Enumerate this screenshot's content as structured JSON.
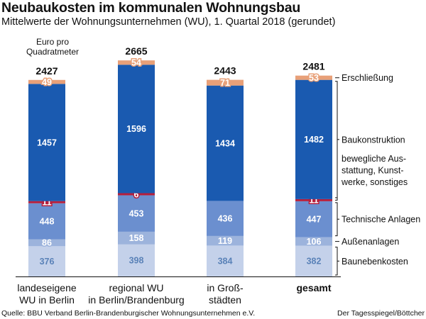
{
  "header": {
    "title": "Neubaukosten im kommunalen Wohnungsbau",
    "subtitle": "Mittelwerte der Wohnungsunternehmen (WU), 1. Quartal 2018 (gerundet)"
  },
  "unit_label_line1": "Euro pro",
  "unit_label_line2": "Quadratmeter",
  "footer": {
    "source": "Quelle: BBU Verband Berlin-Brandenburgischer Wohnungsunternehmen e.V.",
    "credit": "Der Tagesspiegel/Böttcher"
  },
  "chart_data": {
    "type": "bar",
    "stacked": true,
    "categories": [
      [
        "landeseigene",
        "WU in Berlin"
      ],
      [
        "regional WU",
        "in Berlin/Brandenburg"
      ],
      [
        "in Groß-",
        "städten"
      ],
      [
        "gesamt"
      ]
    ],
    "totals": [
      2427,
      2665,
      2443,
      2481
    ],
    "series": [
      {
        "name": "Baunebenkosten",
        "values": [
          376,
          398,
          384,
          382
        ],
        "color": "#c4d1ea",
        "label_color": "#5a82b8"
      },
      {
        "name": "Außenanlagen",
        "values": [
          86,
          158,
          119,
          106
        ],
        "color": "#9cb3dc",
        "label_color": "#ffffff"
      },
      {
        "name": "Technische Anlagen",
        "values": [
          448,
          453,
          436,
          447
        ],
        "color": "#6b8fcf",
        "label_color": "#ffffff"
      },
      {
        "name": "bewegliche Ausstattung, Kunstwerke, sonstiges",
        "values": [
          11,
          6,
          null,
          11
        ],
        "color": "#b41e3c",
        "label_color": "#ffffff"
      },
      {
        "name": "Baukonstruktion",
        "values": [
          1457,
          1596,
          1434,
          1482
        ],
        "color": "#1a5ab0",
        "label_color": "#ffffff"
      },
      {
        "name": "Erschließung",
        "values": [
          49,
          54,
          71,
          53
        ],
        "color": "#e8a078",
        "label_color": "#ffffff"
      }
    ],
    "legend_labels": [
      {
        "series": "Erschließung",
        "lines": [
          "Erschließung"
        ]
      },
      {
        "series": "Baukonstruktion",
        "lines": [
          "Baukonstruktion"
        ]
      },
      {
        "series": "bewegliche Ausstattung, Kunstwerke, sonstiges",
        "lines": [
          "bewegliche Aus-",
          "stattung, Kunst-",
          "werke, sonstiges"
        ]
      },
      {
        "series": "Technische Anlagen",
        "lines": [
          "Technische Anlagen"
        ]
      },
      {
        "series": "Außenanlagen",
        "lines": [
          "Außenanlagen"
        ]
      },
      {
        "series": "Baunebenkosten",
        "lines": [
          "Baunebenkosten"
        ]
      }
    ],
    "legend_placement": "right",
    "grid": false
  }
}
